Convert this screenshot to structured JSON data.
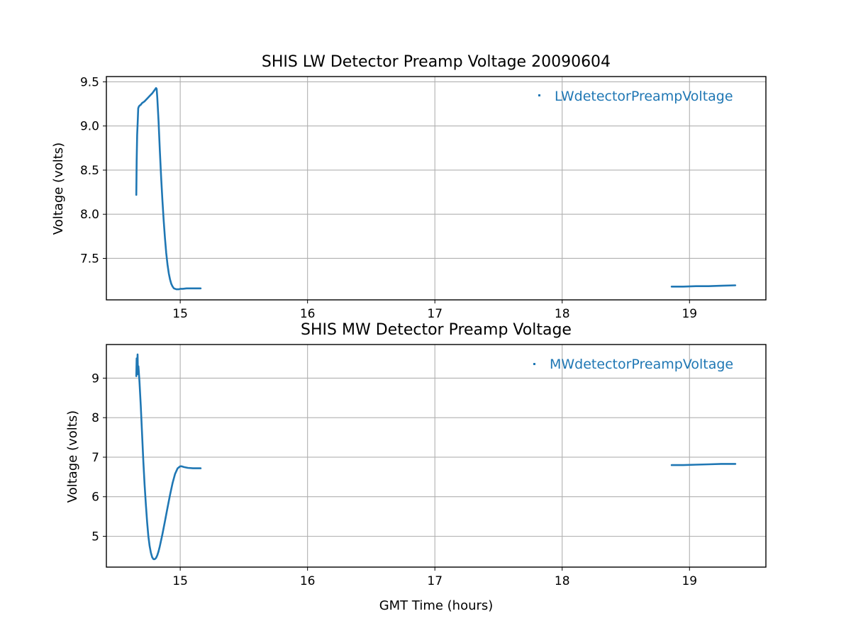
{
  "chart_data": [
    {
      "type": "line",
      "title": "SHIS LW Detector Preamp Voltage 20090604",
      "xlabel": "",
      "ylabel": "Voltage (volts)",
      "xlim": [
        14.42,
        15.58
      ],
      "xlim_full": [
        14.42,
        19.6
      ],
      "ylim": [
        7.03,
        9.56
      ],
      "xticks": [
        15,
        16,
        17,
        18,
        19
      ],
      "xtick_labels": [
        "15",
        "16",
        "17",
        "18",
        "19"
      ],
      "yticks": [
        7.5,
        8.0,
        8.5,
        9.0,
        9.5
      ],
      "ytick_labels": [
        "7.5",
        "8.0",
        "8.5",
        "9.0",
        "9.5"
      ],
      "grid": true,
      "legend_position": "top-right",
      "color": "#1f77b4",
      "series": [
        {
          "name": "LWdetectorPreampVoltage",
          "segments": [
            {
              "x": [
                14.655,
                14.658,
                14.662,
                14.666,
                14.67,
                14.675,
                14.68,
                14.69,
                14.7,
                14.72,
                14.74,
                14.76,
                14.78,
                14.8,
                14.81,
                14.815,
                14.82,
                14.83,
                14.84,
                14.85,
                14.86,
                14.87,
                14.88,
                14.89,
                14.9,
                14.91,
                14.92,
                14.93,
                14.94,
                14.95,
                14.96,
                14.97,
                14.98,
                14.99,
                15.0,
                15.02,
                15.05,
                15.08,
                15.11,
                15.14,
                15.16
              ],
              "y": [
                8.22,
                8.6,
                8.9,
                9.05,
                9.2,
                9.22,
                9.23,
                9.24,
                9.26,
                9.28,
                9.31,
                9.34,
                9.37,
                9.41,
                9.43,
                9.42,
                9.32,
                9.05,
                8.72,
                8.42,
                8.16,
                7.93,
                7.73,
                7.56,
                7.43,
                7.33,
                7.26,
                7.21,
                7.18,
                7.16,
                7.155,
                7.15,
                7.15,
                7.15,
                7.155,
                7.155,
                7.16,
                7.16,
                7.16,
                7.16,
                7.16
              ]
            },
            {
              "x": [
                18.86,
                18.95,
                19.05,
                19.15,
                19.25,
                19.36
              ],
              "y": [
                7.18,
                7.18,
                7.185,
                7.185,
                7.19,
                7.195
              ]
            }
          ]
        }
      ]
    },
    {
      "type": "line",
      "title": "SHIS MW Detector Preamp Voltage",
      "xlabel": "GMT Time (hours)",
      "ylabel": "Voltage (volts)",
      "xlim": [
        14.42,
        19.6
      ],
      "ylim": [
        4.22,
        9.85
      ],
      "xticks": [
        15,
        16,
        17,
        18,
        19
      ],
      "xtick_labels": [
        "15",
        "16",
        "17",
        "18",
        "19"
      ],
      "yticks": [
        5,
        6,
        7,
        8,
        9
      ],
      "ytick_labels": [
        "5",
        "6",
        "7",
        "8",
        "9"
      ],
      "grid": true,
      "legend_position": "top-right",
      "color": "#1f77b4",
      "series": [
        {
          "name": "MWdetectorPreampVoltage",
          "segments": [
            {
              "x": [
                14.655,
                14.658,
                14.662,
                14.665,
                14.668,
                14.672,
                14.68,
                14.69,
                14.7,
                14.71,
                14.72,
                14.73,
                14.74,
                14.75,
                14.76,
                14.77,
                14.78,
                14.79,
                14.8,
                14.81,
                14.82,
                14.83,
                14.84,
                14.86,
                14.88,
                14.9,
                14.92,
                14.94,
                14.96,
                14.98,
                15.0,
                15.01,
                15.03,
                15.06,
                15.1,
                15.16
              ],
              "y": [
                9.05,
                9.5,
                9.2,
                9.6,
                9.1,
                9.3,
                8.9,
                8.3,
                7.6,
                6.9,
                6.3,
                5.8,
                5.35,
                5.0,
                4.75,
                4.58,
                4.47,
                4.42,
                4.42,
                4.45,
                4.52,
                4.62,
                4.75,
                5.05,
                5.38,
                5.72,
                6.05,
                6.35,
                6.58,
                6.72,
                6.77,
                6.77,
                6.75,
                6.73,
                6.72,
                6.72
              ]
            },
            {
              "x": [
                18.86,
                18.95,
                19.05,
                19.15,
                19.25,
                19.36
              ],
              "y": [
                6.8,
                6.8,
                6.81,
                6.82,
                6.83,
                6.83
              ]
            }
          ]
        }
      ]
    }
  ]
}
